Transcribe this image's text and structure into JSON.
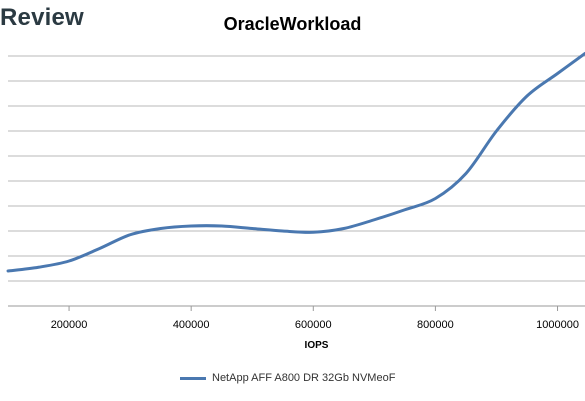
{
  "header": {
    "brand": "Review"
  },
  "chart_data": {
    "type": "line",
    "title": "OracleWorkload",
    "xlabel": "IOPS",
    "ylabel": "",
    "xlim": [
      100000,
      1045000
    ],
    "ylim": [
      0,
      10
    ],
    "x_ticks": [
      200000,
      400000,
      600000,
      800000,
      1000000
    ],
    "x_tick_labels": [
      "200000",
      "400000",
      "600000",
      "800000",
      "1000000"
    ],
    "y_ticks": [
      0,
      1,
      2,
      3,
      4,
      5,
      6,
      7,
      8,
      9,
      10
    ],
    "grid": "horizontal",
    "legend": "bottom",
    "series": [
      {
        "name": "NetApp AFF A800 DR 32Gb NVMeoF",
        "color": "#4a78b0",
        "x": [
          100000,
          150000,
          200000,
          250000,
          300000,
          350000,
          400000,
          450000,
          500000,
          550000,
          600000,
          650000,
          700000,
          750000,
          800000,
          850000,
          900000,
          950000,
          1000000,
          1045000
        ],
        "y": [
          1.4,
          1.55,
          1.8,
          2.3,
          2.85,
          3.1,
          3.2,
          3.2,
          3.1,
          3.0,
          2.95,
          3.1,
          3.45,
          3.85,
          4.3,
          5.3,
          7.0,
          8.4,
          9.3,
          10.1
        ]
      }
    ]
  }
}
